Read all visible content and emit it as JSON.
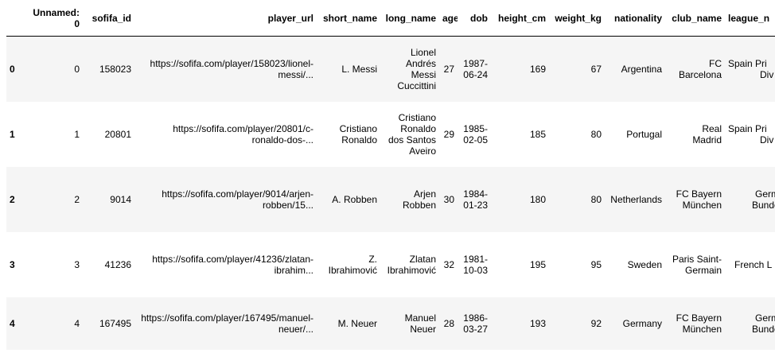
{
  "table": {
    "columns": {
      "unnamed_line1": "Unnamed:",
      "unnamed_line2": "0",
      "sofifa_id": "sofifa_id",
      "player_url": "player_url",
      "short_name": "short_name",
      "long_name": "long_name",
      "age": "age",
      "dob": "dob",
      "height_cm": "height_cm",
      "weight_kg": "weight_kg",
      "nationality": "nationality",
      "club_name": "club_name",
      "league_name": "league_n"
    },
    "rows": [
      {
        "index": "0",
        "unnamed": "0",
        "sofifa_id": "158023",
        "player_url": {
          "line1": "https://sofifa.com/player/158023/lionel-",
          "line2": "messi/..."
        },
        "short_name": {
          "line1": "L. Messi",
          "line2": ""
        },
        "long_name": {
          "line1": "Lionel",
          "line2": "Andrés",
          "line3": "Messi",
          "line4": "Cuccittini"
        },
        "age": "27",
        "dob": {
          "line1": "1987-",
          "line2": "06-24"
        },
        "height_cm": "169",
        "weight_kg": "67",
        "nationality": "Argentina",
        "club_name": {
          "line1": "FC",
          "line2": "Barcelona"
        },
        "league_name": {
          "line1": "Spain Pri",
          "line2": "Div"
        }
      },
      {
        "index": "1",
        "unnamed": "1",
        "sofifa_id": "20801",
        "player_url": {
          "line1": "https://sofifa.com/player/20801/c-",
          "line2": "ronaldo-dos-..."
        },
        "short_name": {
          "line1": "Cristiano",
          "line2": "Ronaldo"
        },
        "long_name": {
          "line1": "Cristiano",
          "line2": "Ronaldo",
          "line3": "dos Santos",
          "line4": "Aveiro"
        },
        "age": "29",
        "dob": {
          "line1": "1985-",
          "line2": "02-05"
        },
        "height_cm": "185",
        "weight_kg": "80",
        "nationality": "Portugal",
        "club_name": {
          "line1": "Real",
          "line2": "Madrid"
        },
        "league_name": {
          "line1": "Spain Pri",
          "line2": "Div"
        }
      },
      {
        "index": "2",
        "unnamed": "2",
        "sofifa_id": "9014",
        "player_url": {
          "line1": "https://sofifa.com/player/9014/arjen-",
          "line2": "robben/15..."
        },
        "short_name": {
          "line1": "A. Robben",
          "line2": ""
        },
        "long_name": {
          "line1": "Arjen",
          "line2": "Robben",
          "line3": "",
          "line4": ""
        },
        "age": "30",
        "dob": {
          "line1": "1984-",
          "line2": "01-23"
        },
        "height_cm": "180",
        "weight_kg": "80",
        "nationality": "Netherlands",
        "club_name": {
          "line1": "FC Bayern",
          "line2": "München"
        },
        "league_name": {
          "line1": "Germ",
          "line2": "Bunde"
        }
      },
      {
        "index": "3",
        "unnamed": "3",
        "sofifa_id": "41236",
        "player_url": {
          "line1": "https://sofifa.com/player/41236/zlatan-",
          "line2": "ibrahim..."
        },
        "short_name": {
          "line1": "Z.",
          "line2": "Ibrahimović"
        },
        "long_name": {
          "line1": "Zlatan",
          "line2": "Ibrahimović",
          "line3": "",
          "line4": ""
        },
        "age": "32",
        "dob": {
          "line1": "1981-",
          "line2": "10-03"
        },
        "height_cm": "195",
        "weight_kg": "95",
        "nationality": "Sweden",
        "club_name": {
          "line1": "Paris Saint-",
          "line2": "Germain"
        },
        "league_name": {
          "line1": "French L",
          "line2": ""
        }
      },
      {
        "index": "4",
        "unnamed": "4",
        "sofifa_id": "167495",
        "player_url": {
          "line1": "https://sofifa.com/player/167495/manuel-",
          "line2": "neuer/..."
        },
        "short_name": {
          "line1": "M. Neuer",
          "line2": ""
        },
        "long_name": {
          "line1": "Manuel",
          "line2": "Neuer",
          "line3": "",
          "line4": ""
        },
        "age": "28",
        "dob": {
          "line1": "1986-",
          "line2": "03-27"
        },
        "height_cm": "193",
        "weight_kg": "92",
        "nationality": "Germany",
        "club_name": {
          "line1": "FC Bayern",
          "line2": "München"
        },
        "league_name": {
          "line1": "Germ",
          "line2": "Bunde"
        }
      }
    ]
  },
  "colors": {
    "row_stripe": "#f5f5f5",
    "row_plain": "#ffffff",
    "header_rule": "#000000",
    "text": "#000000"
  }
}
